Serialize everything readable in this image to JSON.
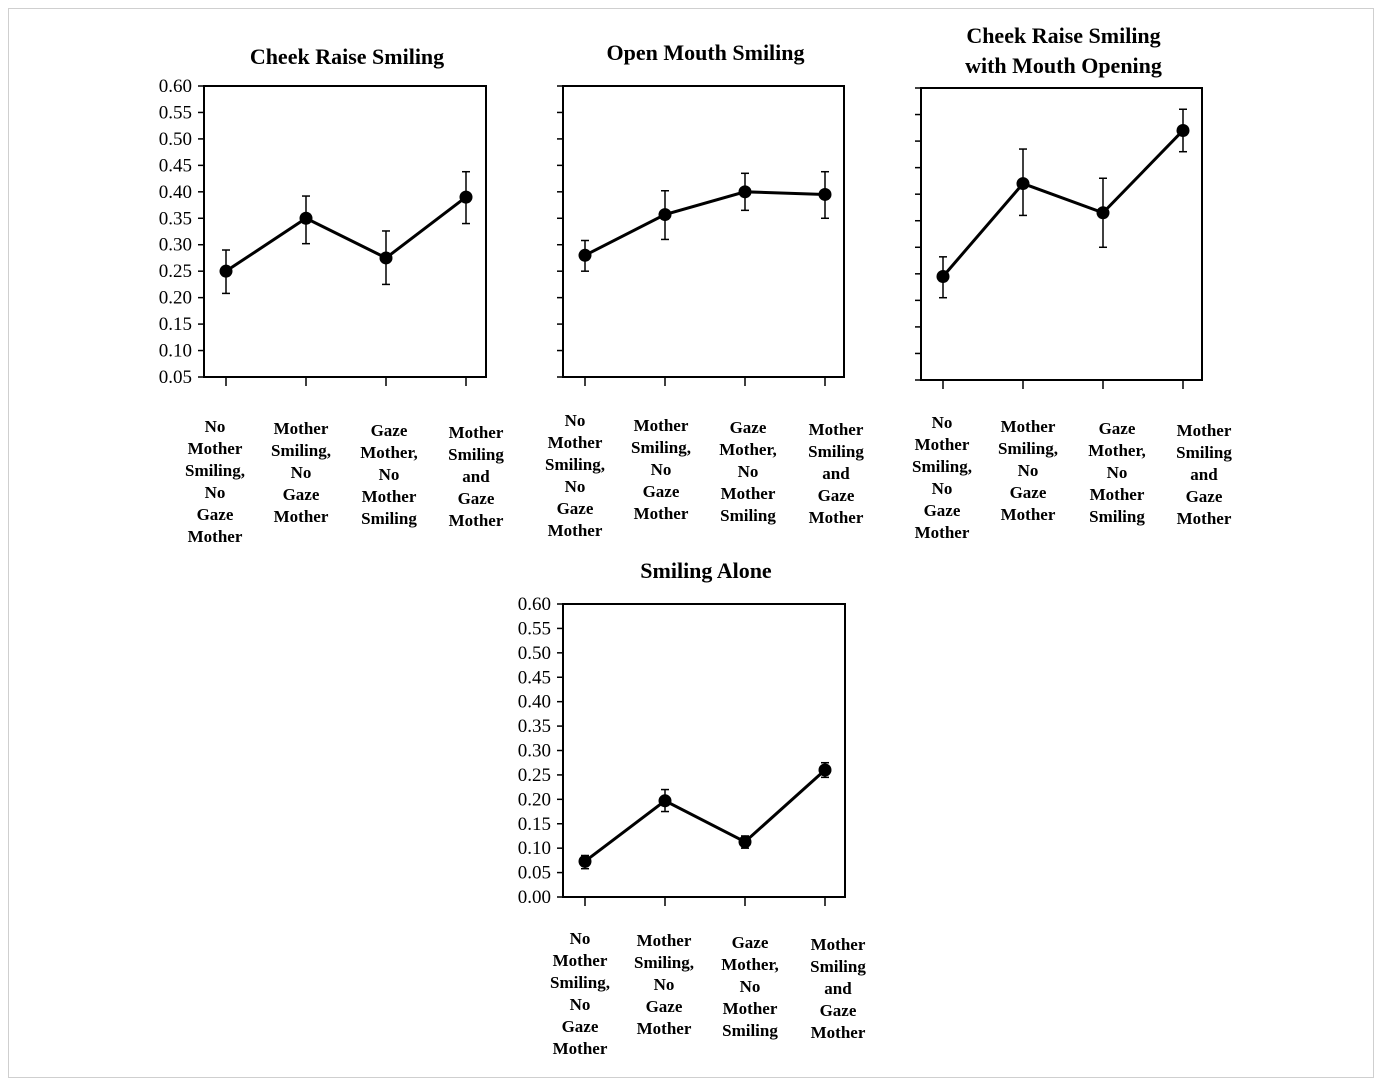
{
  "chart_data": [
    {
      "type": "line",
      "title": "Cheek Raise Smiling",
      "categories": [
        "No Mother Smiling, No Gaze Mother",
        "Mother Smiling, No Gaze Mother",
        "Gaze Mother, No Mother Smiling",
        "Mother Smiling and Gaze Mother"
      ],
      "values": [
        0.25,
        0.35,
        0.275,
        0.39
      ],
      "error_low": [
        0.208,
        0.302,
        0.225,
        0.34
      ],
      "error_high": [
        0.29,
        0.392,
        0.326,
        0.438
      ],
      "ylim": [
        0.05,
        0.6
      ],
      "yticks": [
        "0.60",
        "0.55",
        "0.50",
        "0.45",
        "0.40",
        "0.35",
        "0.30",
        "0.25",
        "0.20",
        "0.15",
        "0.10",
        "0.05"
      ],
      "show_tick_labels": true
    },
    {
      "type": "line",
      "title": "Open Mouth Smiling",
      "categories": [
        "No Mother Smiling, No Gaze Mother",
        "Mother Smiling, No Gaze Mother",
        "Gaze Mother, No Mother Smiling",
        "Mother Smiling and Gaze Mother"
      ],
      "values": [
        0.28,
        0.357,
        0.4,
        0.395
      ],
      "error_low": [
        0.25,
        0.31,
        0.365,
        0.35
      ],
      "error_high": [
        0.308,
        0.402,
        0.435,
        0.438
      ],
      "ylim": [
        0.05,
        0.6
      ],
      "yticks": [],
      "show_tick_labels": false
    },
    {
      "type": "line",
      "title": "Cheek Raise Smiling with Mouth Opening",
      "title_lines": [
        "Cheek Raise Smiling",
        "with Mouth Opening"
      ],
      "categories": [
        "No Mother Smiling, No Gaze Mother",
        "Mother Smiling, No Gaze Mother",
        "Gaze Mother, No Mother Smiling",
        "Mother Smiling and Gaze Mother"
      ],
      "values": [
        0.245,
        0.42,
        0.365,
        0.52
      ],
      "error_low": [
        0.205,
        0.36,
        0.3,
        0.48
      ],
      "error_high": [
        0.282,
        0.485,
        0.43,
        0.56
      ],
      "ylim": [
        0.05,
        0.6
      ],
      "yticks": [],
      "show_tick_labels": false
    },
    {
      "type": "line",
      "title": "Smiling Alone",
      "categories": [
        "No Mother Smiling, No Gaze Mother",
        "Mother Smiling, No Gaze Mother",
        "Gaze Mother, No Mother Smiling",
        "Mother Smiling and Gaze Mother"
      ],
      "values": [
        0.073,
        0.197,
        0.113,
        0.26
      ],
      "error_low": [
        0.058,
        0.175,
        0.1,
        0.245
      ],
      "error_high": [
        0.085,
        0.22,
        0.125,
        0.275
      ],
      "ylim": [
        0.0,
        0.6
      ],
      "yticks": [
        "0.60",
        "0.55",
        "0.50",
        "0.45",
        "0.40",
        "0.35",
        "0.30",
        "0.25",
        "0.20",
        "0.15",
        "0.10",
        "0.05",
        "0.00"
      ],
      "show_tick_labels": true
    }
  ],
  "category_label_lines": [
    [
      "No",
      "Mother",
      "Smiling,",
      "No",
      "Gaze",
      "Mother"
    ],
    [
      "Mother",
      "Smiling,",
      "No",
      "Gaze",
      "Mother"
    ],
    [
      "Gaze",
      "Mother,",
      "No",
      "Mother",
      "Smiling"
    ],
    [
      "Mother",
      "Smiling",
      "and",
      "Gaze",
      "Mother"
    ]
  ]
}
